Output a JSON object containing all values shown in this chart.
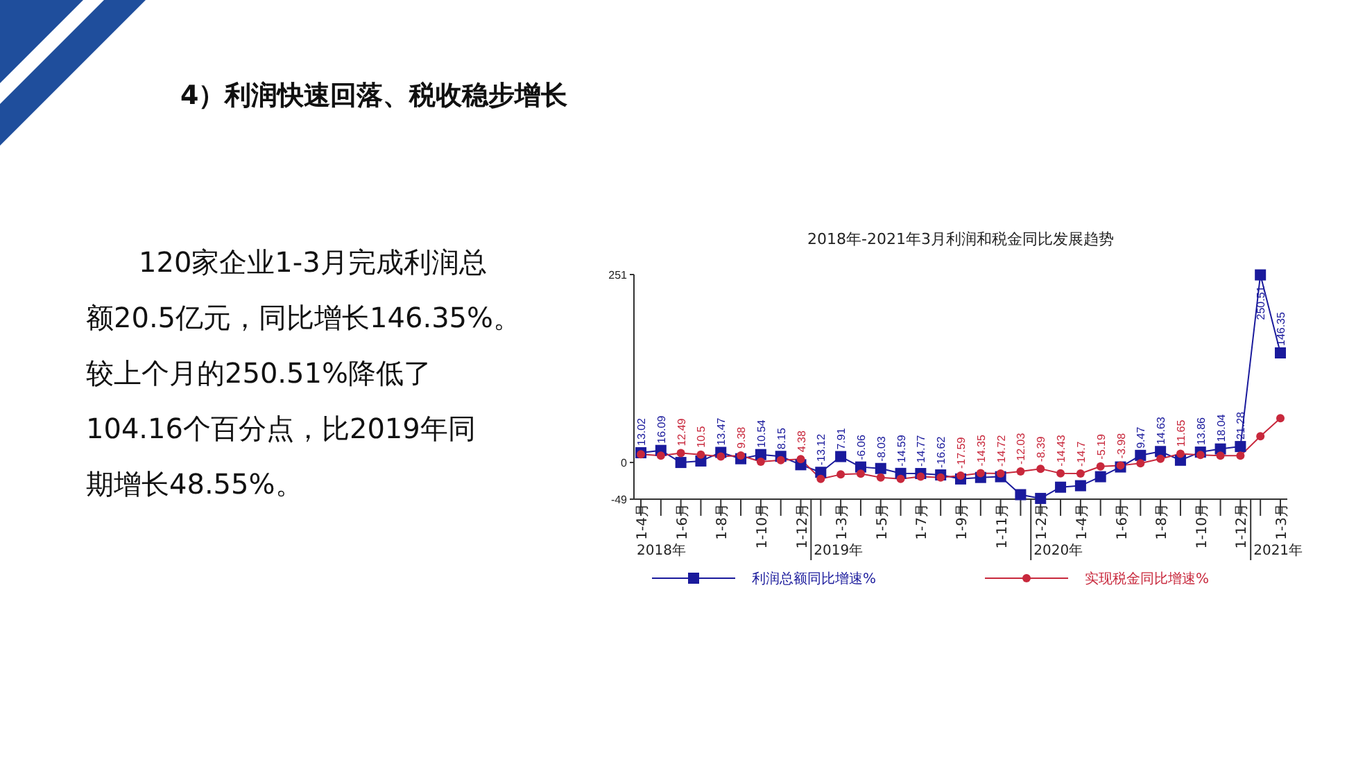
{
  "chart_data": {
    "type": "line",
    "title": "2018年-2021年3月利润和税金同比发展趋势",
    "categories": [
      "1-4月",
      null,
      "1-6月",
      null,
      "1-8月",
      null,
      "1-10月",
      null,
      "1-12月",
      null,
      "1-3月",
      null,
      "1-5月",
      null,
      "1-7月",
      null,
      "1-9月",
      null,
      "1-11月",
      null,
      "1-2月",
      null,
      "1-4月",
      null,
      "1-6月",
      null,
      "1-8月",
      null,
      "1-10月",
      null,
      "1-12月",
      null,
      "1-3月"
    ],
    "series": [
      {
        "name": "利润总额同比增速%",
        "color": "#1a1a9c",
        "marker": "square",
        "values": [
          13.02,
          16.09,
          0,
          2,
          13.47,
          5,
          10.54,
          8.15,
          -3,
          -13.12,
          7.91,
          -6.06,
          -8.03,
          -14.59,
          -14.77,
          -16.62,
          -22,
          -20,
          -19,
          -43,
          -48,
          -33,
          -31,
          -19,
          -6,
          9.47,
          14.63,
          3,
          13.86,
          18.04,
          21.28,
          250.51,
          146.35
        ],
        "value_labels": [
          "13.02",
          "16.09",
          null,
          null,
          "13.47",
          null,
          "10.54",
          "8.15",
          null,
          "-13.12",
          "7.91",
          "-6.06",
          "-8.03",
          "-14.59",
          "-14.77",
          "-16.62",
          null,
          null,
          null,
          null,
          null,
          null,
          null,
          null,
          null,
          "9.47",
          "14.63",
          null,
          "13.86",
          "18.04",
          "21.28",
          "250.51",
          "146.35"
        ]
      },
      {
        "name": "实现税金同比增速%",
        "color": "#c8283c",
        "marker": "circle",
        "values": [
          11,
          9,
          12.49,
          10.5,
          8,
          9.38,
          1,
          3,
          4.38,
          -22,
          -16,
          -15,
          -20,
          -22,
          -19,
          -20,
          -17.59,
          -14.35,
          -14.72,
          -12.03,
          -8.39,
          -14.43,
          -14.7,
          -5.19,
          -3.98,
          -1,
          5,
          11.65,
          10,
          9,
          9,
          35,
          59
        ],
        "value_labels": [
          null,
          null,
          "12.49",
          "10.5",
          null,
          "9.38",
          null,
          null,
          "4.38",
          null,
          null,
          null,
          null,
          null,
          null,
          null,
          "-17.59",
          "-14.35",
          "-14.72",
          "-12.03",
          "-8.39",
          "-14.43",
          "-14.7",
          "-5.19",
          "-3.98",
          null,
          null,
          "11.65",
          null,
          null,
          null,
          null,
          null
        ]
      }
    ],
    "ylim": [
      -49,
      251
    ],
    "yticks": [
      251,
      0,
      -49
    ],
    "grid": false,
    "legend": "bottom",
    "annotations": [
      "4）利润快速回落、税收稳步增长",
      "120家企业1-3月完成利润总",
      "额20.5亿元，同比增长146.35%。",
      "较上个月的250.51%降低了",
      "104.16个百分点，比2019年同",
      "期增长48.55%。",
      "2018年",
      "2019年",
      "2020年",
      "2021年"
    ]
  }
}
